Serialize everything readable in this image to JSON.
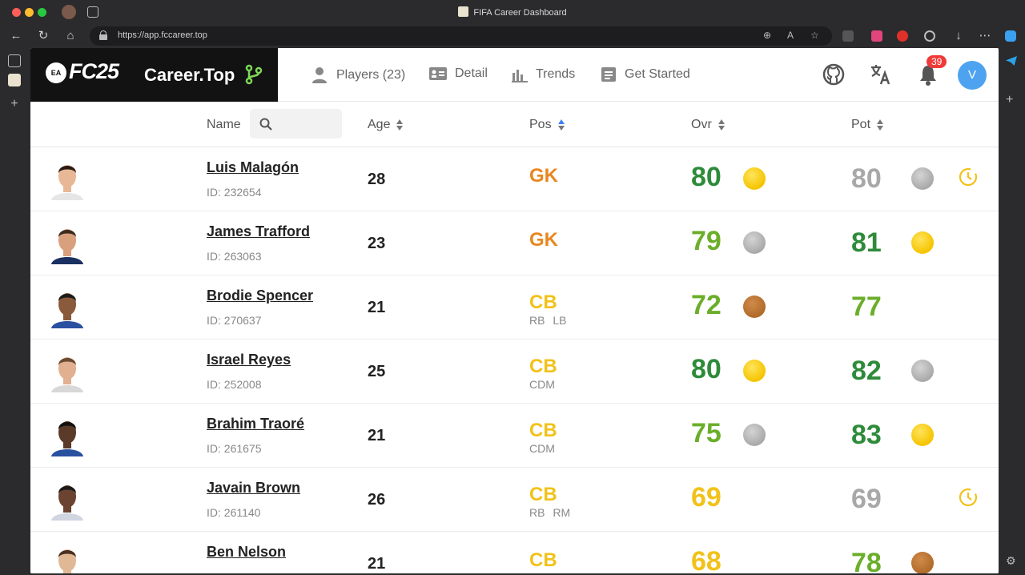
{
  "window": {
    "title": "FIFA Career Dashboard",
    "url": "https://app.fccareer.top"
  },
  "brand": {
    "ea": "EA",
    "fc": "FC25",
    "site": "Career.Top"
  },
  "nav": [
    {
      "label": "Players (23)",
      "icon": "user-icon"
    },
    {
      "label": "Detail",
      "icon": "id-card-icon"
    },
    {
      "label": "Trends",
      "icon": "bar-chart-icon"
    },
    {
      "label": "Get Started",
      "icon": "document-icon"
    }
  ],
  "header": {
    "notifications": "39",
    "user_initial": "V"
  },
  "table": {
    "headers": {
      "name": "Name",
      "age": "Age",
      "pos": "Pos",
      "ovr": "Ovr",
      "pot": "Pot"
    },
    "search_placeholder": "",
    "colors": {
      "gk": "#e8871e",
      "cb": "#f2c21a",
      "dark_green": "#2e8b3a",
      "light_green": "#6aae2a",
      "yellow": "#f2c21a",
      "grey": "#a8a8a8"
    },
    "rows": [
      {
        "name": "Luis Malagón",
        "id": "ID: 232654",
        "age": "28",
        "pos": "GK",
        "alt": "",
        "ovr": "80",
        "ovr_color": "#2e8b3a",
        "ovr_coin": "gold",
        "pot": "80",
        "pot_color": "#a8a8a8",
        "pot_coin": "silver",
        "clock": true
      },
      {
        "name": "James Trafford",
        "id": "ID: 263063",
        "age": "23",
        "pos": "GK",
        "alt": "",
        "ovr": "79",
        "ovr_color": "#6aae2a",
        "ovr_coin": "silver",
        "pot": "81",
        "pot_color": "#2e8b3a",
        "pot_coin": "gold",
        "clock": false
      },
      {
        "name": "Brodie Spencer",
        "id": "ID: 270637",
        "age": "21",
        "pos": "CB",
        "alt": "RB  LB",
        "ovr": "72",
        "ovr_color": "#6aae2a",
        "ovr_coin": "bronze",
        "pot": "77",
        "pot_color": "#6aae2a",
        "pot_coin": "",
        "clock": false
      },
      {
        "name": "Israel Reyes",
        "id": "ID: 252008",
        "age": "25",
        "pos": "CB",
        "alt": "CDM",
        "ovr": "80",
        "ovr_color": "#2e8b3a",
        "ovr_coin": "gold",
        "pot": "82",
        "pot_color": "#2e8b3a",
        "pot_coin": "silver",
        "clock": false
      },
      {
        "name": "Brahim Traoré",
        "id": "ID: 261675",
        "age": "21",
        "pos": "CB",
        "alt": "CDM",
        "ovr": "75",
        "ovr_color": "#6aae2a",
        "ovr_coin": "silver",
        "pot": "83",
        "pot_color": "#2e8b3a",
        "pot_coin": "gold",
        "clock": false
      },
      {
        "name": "Javain Brown",
        "id": "ID: 261140",
        "age": "26",
        "pos": "CB",
        "alt": "RB  RM",
        "ovr": "69",
        "ovr_color": "#f2c21a",
        "ovr_coin": "",
        "pot": "69",
        "pot_color": "#a8a8a8",
        "pot_coin": "",
        "clock": true
      },
      {
        "name": "Ben Nelson",
        "id": "",
        "age": "21",
        "pos": "CB",
        "alt": "",
        "ovr": "68",
        "ovr_color": "#f2c21a",
        "ovr_coin": "",
        "pot": "78",
        "pot_color": "#6aae2a",
        "pot_coin": "bronze",
        "clock": false
      }
    ]
  }
}
